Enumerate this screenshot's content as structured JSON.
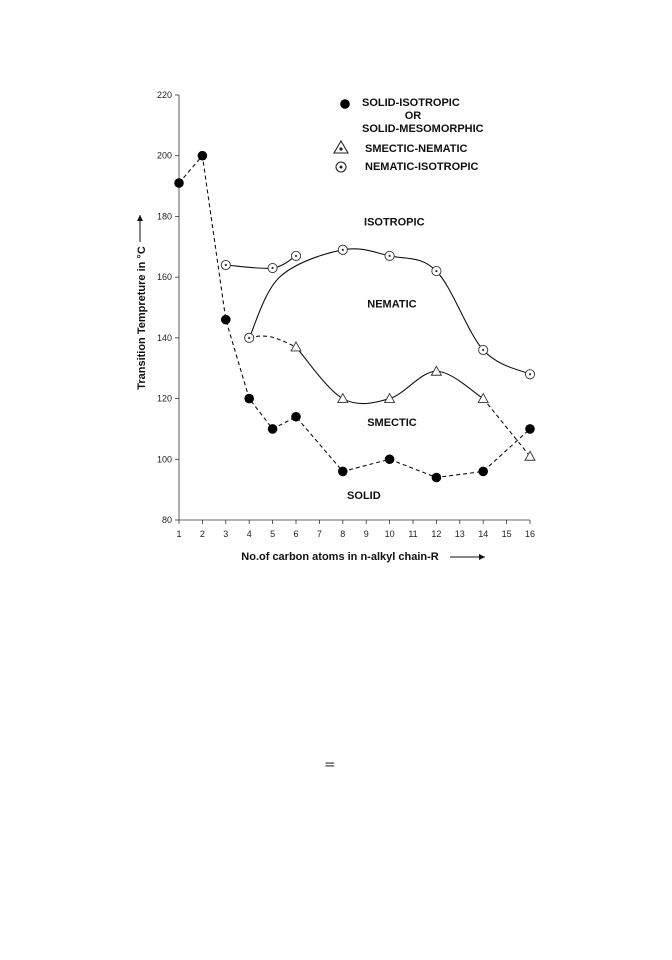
{
  "chart_data": {
    "type": "line",
    "xlabel": "No.of carbon atoms in n-alkyl chain-R",
    "ylabel": "Transition Tempreture in °C",
    "xlim": [
      1,
      16
    ],
    "ylim": [
      80,
      220
    ],
    "x_ticks": [
      1,
      2,
      3,
      4,
      5,
      6,
      7,
      8,
      9,
      10,
      11,
      12,
      13,
      14,
      15,
      16
    ],
    "y_ticks": [
      80,
      100,
      120,
      140,
      160,
      180,
      200,
      220
    ],
    "grid": false,
    "legend_position": "top-right",
    "series": [
      {
        "name": "SOLID-ISOTROPIC OR SOLID-MESOMORPHIC",
        "marker": "filled-circle",
        "line": "dashed",
        "points": [
          [
            1,
            191
          ],
          [
            2,
            200
          ],
          [
            3,
            146
          ],
          [
            4,
            120
          ],
          [
            5,
            110
          ],
          [
            6,
            114
          ],
          [
            8,
            96
          ],
          [
            10,
            100
          ],
          [
            12,
            94
          ],
          [
            14,
            96
          ],
          [
            16,
            110
          ]
        ]
      },
      {
        "name": "SMECTIC-NEMATIC",
        "marker": "open-triangle",
        "line": "solid",
        "points": [
          [
            6,
            137
          ],
          [
            8,
            120
          ],
          [
            10,
            120
          ],
          [
            12,
            129
          ],
          [
            14,
            120
          ],
          [
            16,
            101
          ]
        ]
      },
      {
        "name": "NEMATIC-ISOTROPIC",
        "marker": "dotted-circle",
        "line": "solid",
        "points": [
          [
            3,
            164
          ],
          [
            4,
            140
          ],
          [
            5,
            163
          ],
          [
            6,
            167
          ],
          [
            8,
            169
          ],
          [
            10,
            167
          ],
          [
            12,
            162
          ],
          [
            14,
            136
          ],
          [
            16,
            128
          ]
        ]
      }
    ],
    "region_labels": [
      {
        "text": "ISOTROPIC",
        "x": 10.2,
        "y": 177
      },
      {
        "text": "NEMATIC",
        "x": 10.1,
        "y": 150
      },
      {
        "text": "SMECTIC",
        "x": 10.1,
        "y": 111
      },
      {
        "text": "SOLID",
        "x": 8.9,
        "y": 87
      }
    ],
    "legend": [
      {
        "marker": "filled-circle",
        "lines": [
          "SOLID-ISOTROPIC",
          "OR",
          "SOLID-MESOMORPHIC"
        ]
      },
      {
        "marker": "open-triangle",
        "lines": [
          "SMECTIC-NEMATIC"
        ]
      },
      {
        "marker": "dotted-circle",
        "lines": [
          "NEMATIC-ISOTROPIC"
        ]
      }
    ]
  },
  "page_mark": "="
}
